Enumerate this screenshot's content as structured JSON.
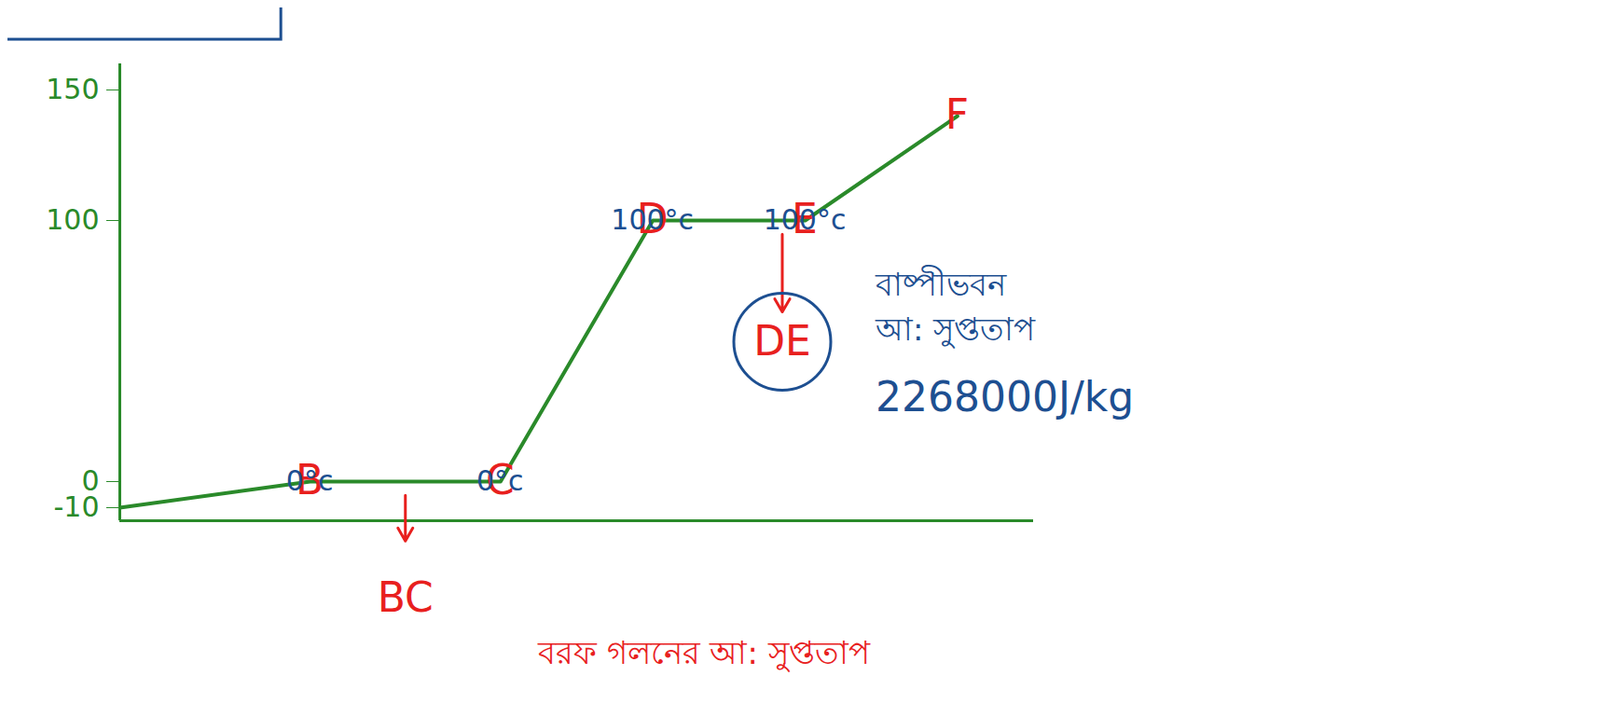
{
  "chart_data": {
    "type": "line",
    "color": "#2a8a2a",
    "marker": "none",
    "x": [
      0,
      2.5,
      5,
      7,
      9,
      11
    ],
    "values": [
      -10,
      0,
      0,
      100,
      100,
      140
    ],
    "point_labels": [
      null,
      "B",
      "C",
      "D",
      "E",
      "F"
    ],
    "xlim": [
      0,
      12
    ],
    "ylim": [
      -15,
      160
    ],
    "yticks": [
      {
        "value": -10,
        "label": "-10"
      },
      0,
      100,
      150
    ],
    "tick_labels": "y",
    "temperature_labels": [
      {
        "point": "B",
        "text": "0°c"
      },
      {
        "point": "C",
        "text": "0°c"
      },
      {
        "point": "D",
        "text": "100°c"
      },
      {
        "point": "E",
        "text": "100°c"
      }
    ],
    "phases": [
      {
        "label": "BC",
        "from": "B",
        "to": "C",
        "notes": [
          "বরফ গলনের আ: সুপ্ততাপ"
        ],
        "color": "#e8201e"
      },
      {
        "label": "DE",
        "from": "D",
        "to": "E",
        "notes": [
          "বাষ্পীভবন",
          "আ: সুপ্ততাপ"
        ],
        "boxed": "2268000J/kg",
        "color": "#1d4f91"
      }
    ]
  }
}
